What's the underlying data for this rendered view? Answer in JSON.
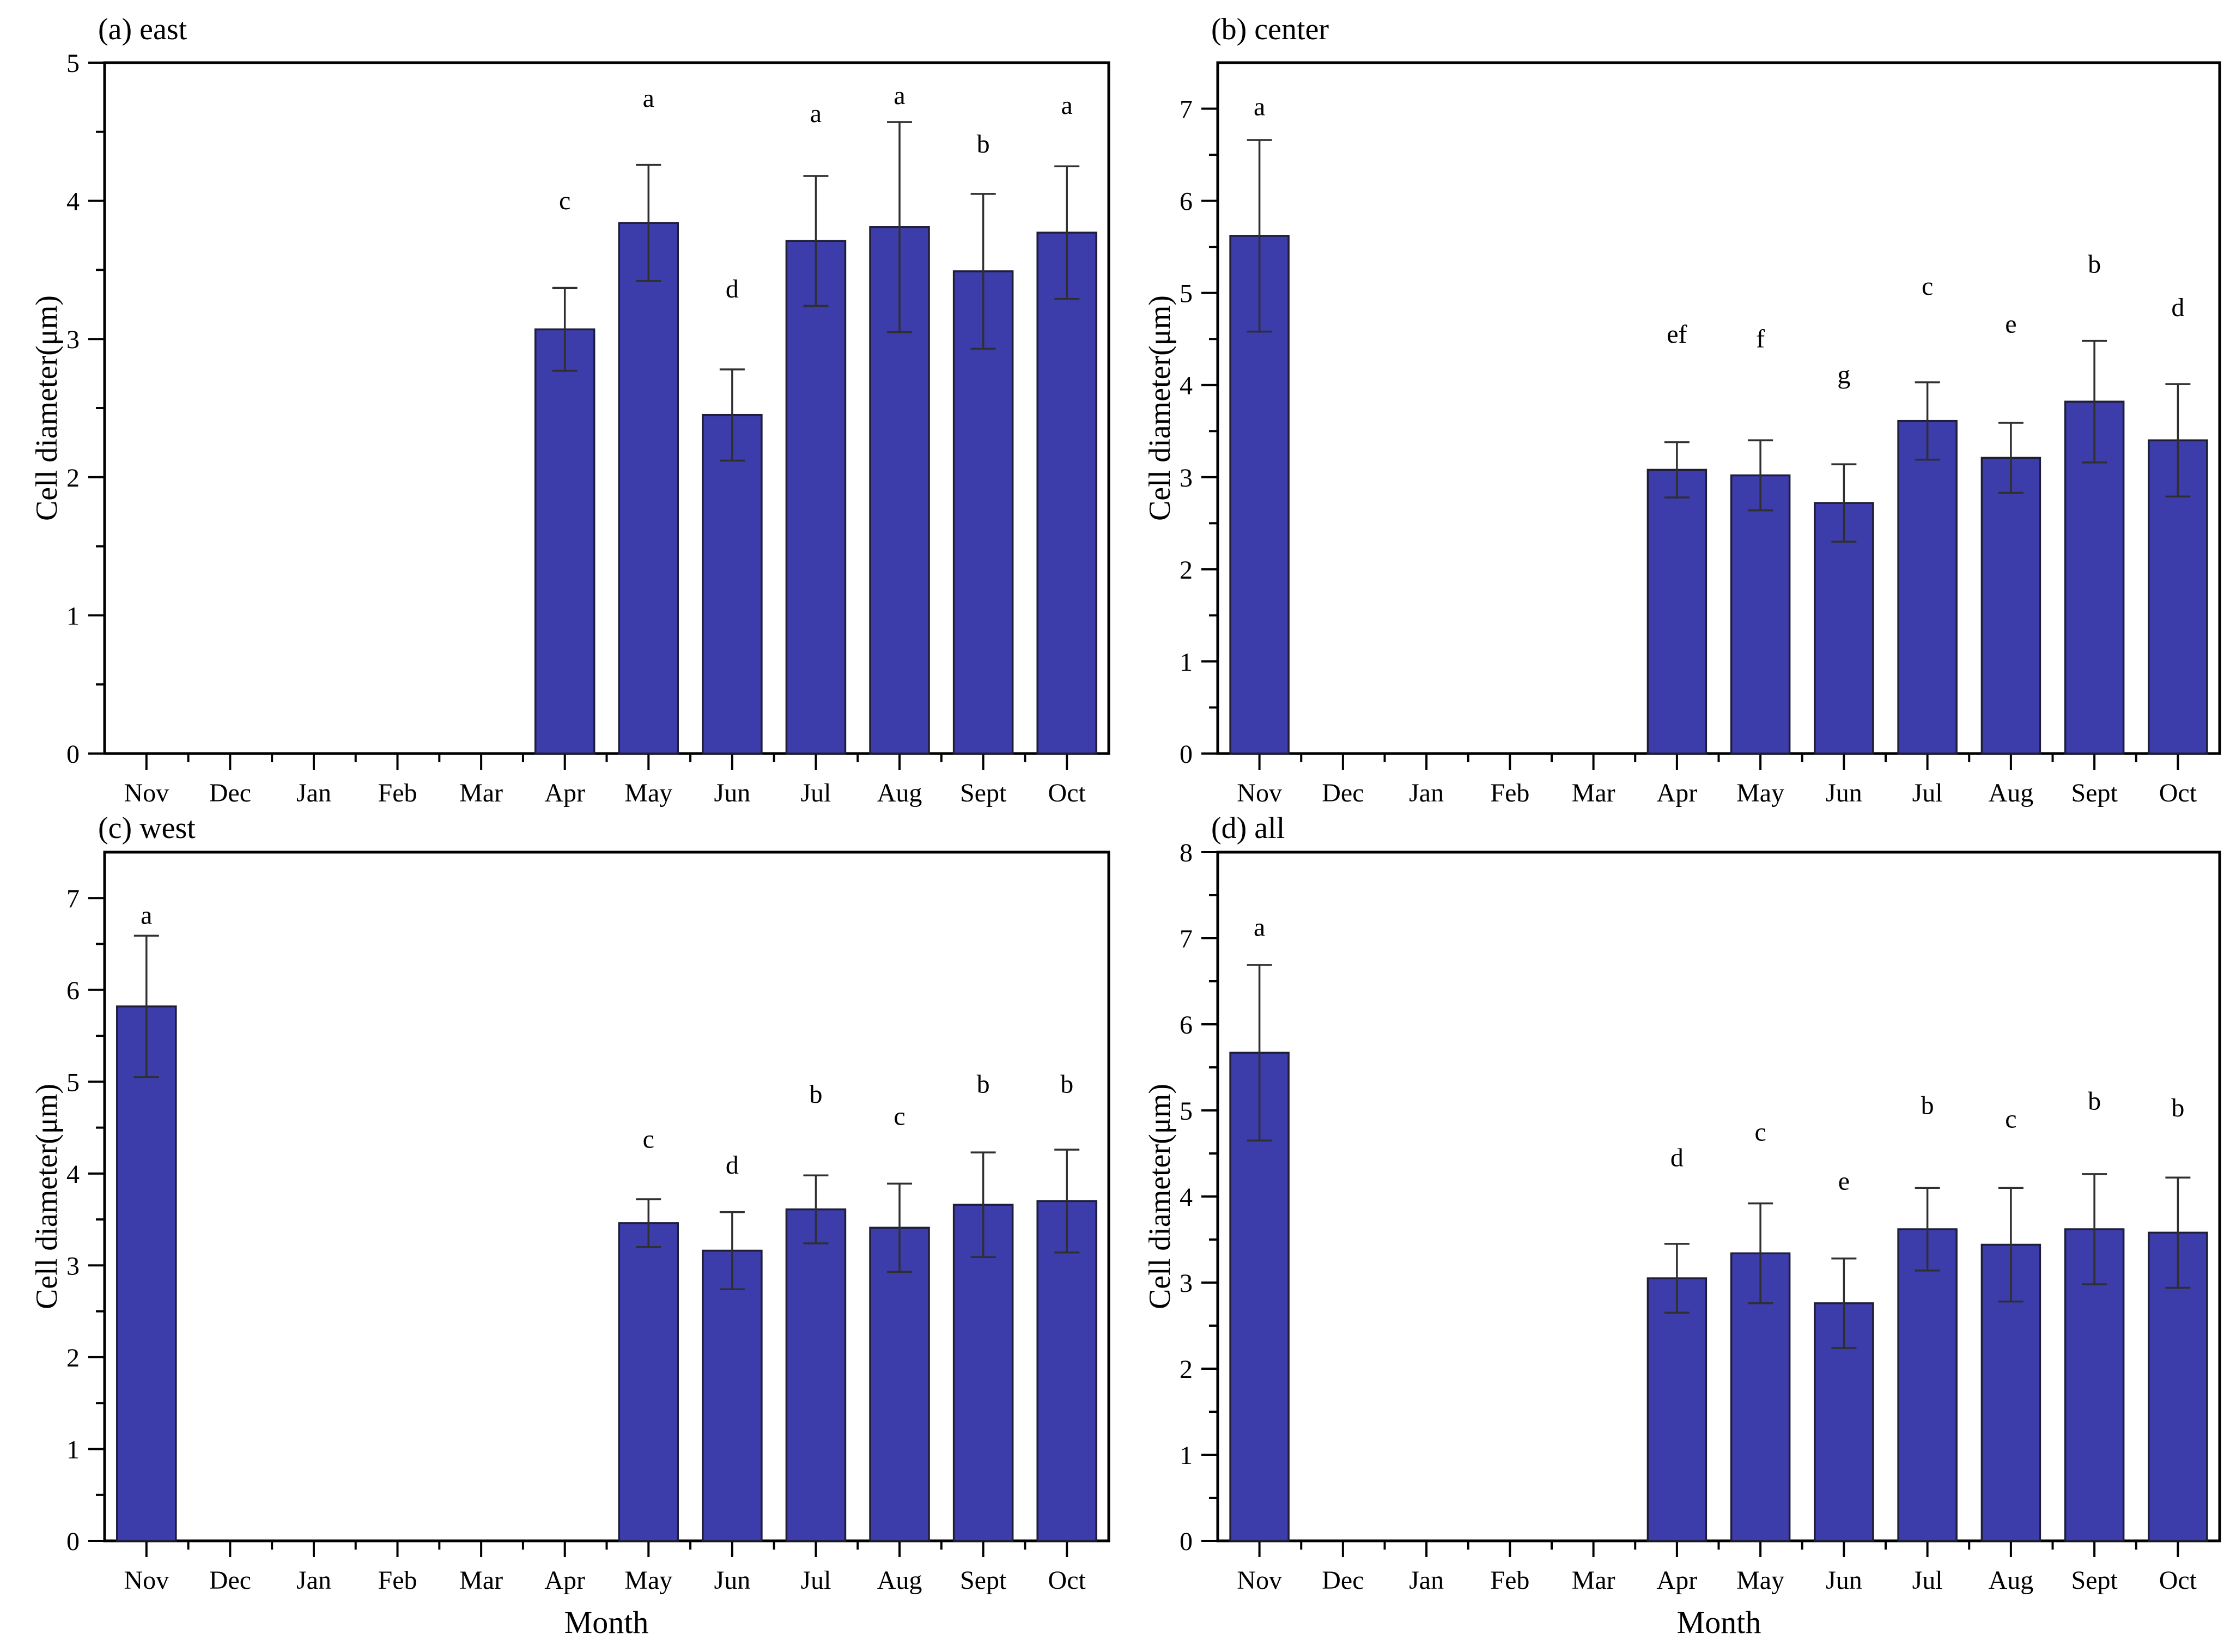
{
  "figure": {
    "background": "#ffffff",
    "bar_fill": "#3c3cab",
    "bar_edge": "#1e1e38",
    "error_color": "#2f2f2f",
    "axis_color": "#000000",
    "text_color": "#000000",
    "xlabel": "Month",
    "ylabel": "Cell diameter(μm)"
  },
  "chart_data": [
    {
      "type": "bar",
      "title": "(a) east",
      "xlabel": "",
      "ylabel": "Cell diameter(μm)",
      "ylim": [
        0,
        5
      ],
      "ytick_max": 5,
      "ytick_step": 1,
      "yminor_step": 0.5,
      "grid": false,
      "legend": "none",
      "categories": [
        "Nov",
        "Dec",
        "Jan",
        "Feb",
        "Mar",
        "Apr",
        "May",
        "Jun",
        "Jul",
        "Aug",
        "Sept",
        "Oct"
      ],
      "bars": [
        {
          "month": "Apr",
          "value": 3.07,
          "error": 0.3,
          "letter": "c",
          "letter_y": 3.94
        },
        {
          "month": "May",
          "value": 3.84,
          "error": 0.42,
          "letter": "a",
          "letter_y": 4.68
        },
        {
          "month": "Jun",
          "value": 2.45,
          "error": 0.33,
          "letter": "d",
          "letter_y": 3.3
        },
        {
          "month": "Jul",
          "value": 3.71,
          "error": 0.47,
          "letter": "a",
          "letter_y": 4.57
        },
        {
          "month": "Aug",
          "value": 3.81,
          "error": 0.76,
          "letter": "a",
          "letter_y": 4.7
        },
        {
          "month": "Sept",
          "value": 3.49,
          "error": 0.56,
          "letter": "b",
          "letter_y": 4.35
        },
        {
          "month": "Oct",
          "value": 3.77,
          "error": 0.48,
          "letter": "a",
          "letter_y": 4.63
        }
      ]
    },
    {
      "type": "bar",
      "title": "(b) center",
      "xlabel": "",
      "ylabel": "Cell diameter(μm)",
      "ylim": [
        0,
        7.5
      ],
      "ytick_max": 7,
      "ytick_step": 1,
      "yminor_step": 0.5,
      "grid": false,
      "legend": "none",
      "categories": [
        "Nov",
        "Dec",
        "Jan",
        "Feb",
        "Mar",
        "Apr",
        "May",
        "Jun",
        "Jul",
        "Aug",
        "Sept",
        "Oct"
      ],
      "bars": [
        {
          "month": "Nov",
          "value": 5.62,
          "error": 1.04,
          "letter": "a",
          "letter_y": 6.93
        },
        {
          "month": "Apr",
          "value": 3.08,
          "error": 0.3,
          "letter": "ef",
          "letter_y": 4.46
        },
        {
          "month": "May",
          "value": 3.02,
          "error": 0.38,
          "letter": "f",
          "letter_y": 4.41
        },
        {
          "month": "Jun",
          "value": 2.72,
          "error": 0.42,
          "letter": "g",
          "letter_y": 4.02
        },
        {
          "month": "Jul",
          "value": 3.61,
          "error": 0.42,
          "letter": "c",
          "letter_y": 4.98
        },
        {
          "month": "Aug",
          "value": 3.21,
          "error": 0.38,
          "letter": "e",
          "letter_y": 4.57
        },
        {
          "month": "Sept",
          "value": 3.82,
          "error": 0.66,
          "letter": "b",
          "letter_y": 5.22
        },
        {
          "month": "Oct",
          "value": 3.4,
          "error": 0.61,
          "letter": "d",
          "letter_y": 4.75
        }
      ]
    },
    {
      "type": "bar",
      "title": "(c) west",
      "xlabel": "Month",
      "ylabel": "Cell diameter(μm)",
      "ylim": [
        0,
        7.5
      ],
      "ytick_max": 7,
      "ytick_step": 1,
      "yminor_step": 0.5,
      "grid": false,
      "legend": "none",
      "categories": [
        "Nov",
        "Dec",
        "Jan",
        "Feb",
        "Mar",
        "Apr",
        "May",
        "Jun",
        "Jul",
        "Aug",
        "Sept",
        "Oct"
      ],
      "bars": [
        {
          "month": "Nov",
          "value": 5.82,
          "error": 0.77,
          "letter": "a",
          "letter_y": 6.72
        },
        {
          "month": "May",
          "value": 3.46,
          "error": 0.26,
          "letter": "c",
          "letter_y": 4.28
        },
        {
          "month": "Jun",
          "value": 3.16,
          "error": 0.42,
          "letter": "d",
          "letter_y": 4.0
        },
        {
          "month": "Jul",
          "value": 3.61,
          "error": 0.37,
          "letter": "b",
          "letter_y": 4.77
        },
        {
          "month": "Aug",
          "value": 3.41,
          "error": 0.48,
          "letter": "c",
          "letter_y": 4.53
        },
        {
          "month": "Sept",
          "value": 3.66,
          "error": 0.57,
          "letter": "b",
          "letter_y": 4.88
        },
        {
          "month": "Oct",
          "value": 3.7,
          "error": 0.56,
          "letter": "b",
          "letter_y": 4.88
        }
      ]
    },
    {
      "type": "bar",
      "title": "(d) all",
      "xlabel": "Month",
      "ylabel": "Cell diameter(μm)",
      "ylim": [
        0,
        8
      ],
      "ytick_max": 8,
      "ytick_step": 1,
      "yminor_step": 0.5,
      "grid": false,
      "legend": "none",
      "categories": [
        "Nov",
        "Dec",
        "Jan",
        "Feb",
        "Mar",
        "Apr",
        "May",
        "Jun",
        "Jul",
        "Aug",
        "Sept",
        "Oct"
      ],
      "bars": [
        {
          "month": "Nov",
          "value": 5.67,
          "error": 1.02,
          "letter": "a",
          "letter_y": 7.03
        },
        {
          "month": "Apr",
          "value": 3.05,
          "error": 0.4,
          "letter": "d",
          "letter_y": 4.35
        },
        {
          "month": "May",
          "value": 3.34,
          "error": 0.58,
          "letter": "c",
          "letter_y": 4.65
        },
        {
          "month": "Jun",
          "value": 2.76,
          "error": 0.52,
          "letter": "e",
          "letter_y": 4.08
        },
        {
          "month": "Jul",
          "value": 3.62,
          "error": 0.48,
          "letter": "b",
          "letter_y": 4.96
        },
        {
          "month": "Aug",
          "value": 3.44,
          "error": 0.66,
          "letter": "c",
          "letter_y": 4.8
        },
        {
          "month": "Sept",
          "value": 3.62,
          "error": 0.64,
          "letter": "b",
          "letter_y": 5.01
        },
        {
          "month": "Oct",
          "value": 3.58,
          "error": 0.64,
          "letter": "b",
          "letter_y": 4.93
        }
      ]
    }
  ]
}
